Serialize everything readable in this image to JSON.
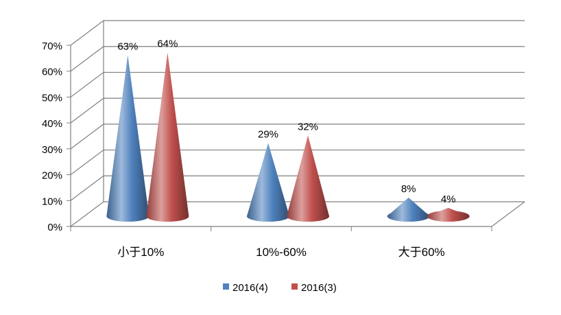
{
  "chart_data": {
    "type": "bar",
    "bar_shape": "3d-cone",
    "categories": [
      "小于10%",
      "10%-60%",
      "大于60%"
    ],
    "series": [
      {
        "name": "2016(4)",
        "values": [
          63,
          29,
          8
        ],
        "labels": [
          "63%",
          "29%",
          "8%"
        ],
        "color": "#4F81BD"
      },
      {
        "name": "2016(3)",
        "values": [
          64,
          32,
          4
        ],
        "labels": [
          "64%",
          "32%",
          "4%"
        ],
        "color": "#C0504D"
      }
    ],
    "y_ticks": [
      "0%",
      "10%",
      "20%",
      "30%",
      "40%",
      "50%",
      "60%",
      "70%"
    ],
    "ylim": [
      0,
      70
    ],
    "y_unit": "%",
    "grid": true,
    "legend_position": "bottom"
  }
}
